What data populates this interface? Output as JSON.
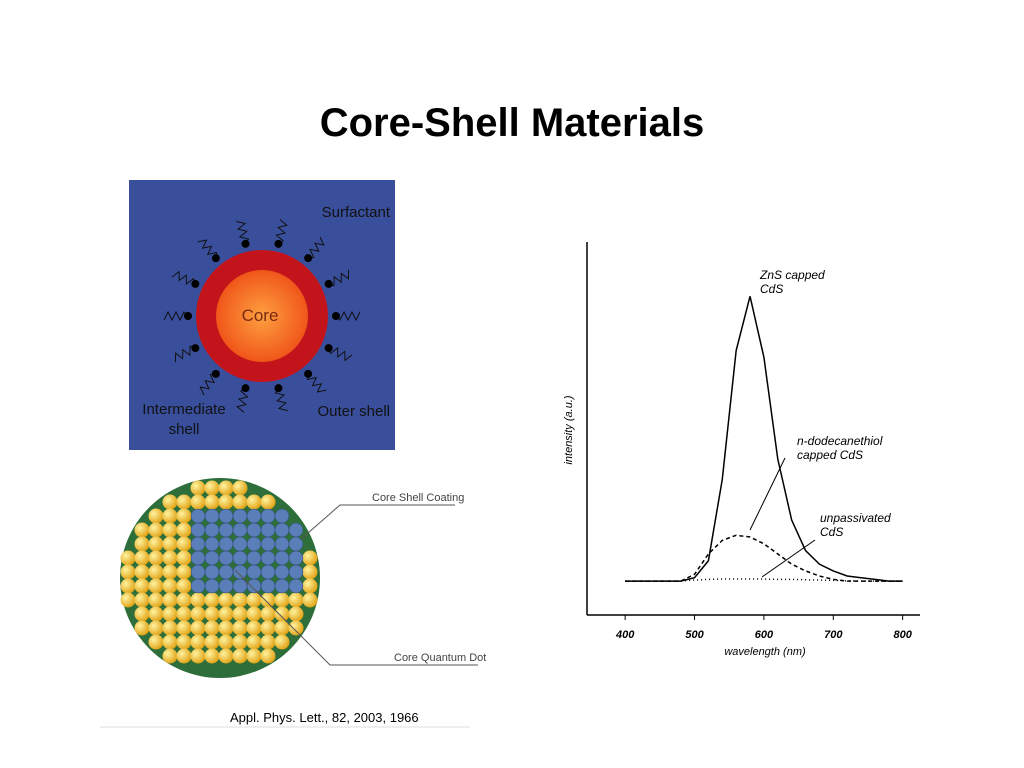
{
  "title": "Core-Shell Materials",
  "diagram": {
    "surfactant": "Surfactant",
    "core": "Core",
    "intermediate": "Intermediate shell",
    "outer": "Outer shell"
  },
  "illustration": {
    "coating": "Core Shell Coating",
    "dot": "Core Quantum Dot"
  },
  "citation": "Appl. Phys. Lett., 82, 2003, 1966",
  "chart_data": {
    "type": "line",
    "x_label": "wavelength (nm)",
    "y_label": "intensity (a.u.)",
    "x": [
      400,
      420,
      440,
      460,
      480,
      500,
      520,
      540,
      560,
      580,
      600,
      620,
      640,
      660,
      680,
      700,
      720,
      740,
      760,
      780,
      800
    ],
    "xlim": [
      345,
      825
    ],
    "xticks": [
      400,
      500,
      600,
      700,
      800
    ],
    "ylim": [
      -0.1,
      1.0
    ],
    "series": [
      {
        "name": "ZnS capped CdS",
        "color": "#000000",
        "dash": "none",
        "values": [
          0,
          0,
          0,
          0,
          0,
          0.01,
          0.06,
          0.3,
          0.68,
          0.84,
          0.66,
          0.36,
          0.18,
          0.09,
          0.05,
          0.03,
          0.015,
          0.01,
          0.005,
          0,
          0
        ]
      },
      {
        "name": "n-dodecanethiol capped CdS",
        "color": "#000000",
        "dash": "4 3",
        "values": [
          0,
          0,
          0,
          0,
          0,
          0.02,
          0.08,
          0.12,
          0.135,
          0.13,
          0.11,
          0.08,
          0.05,
          0.03,
          0.015,
          0.005,
          0,
          0,
          0,
          0,
          0
        ]
      },
      {
        "name": "unpassivated CdS",
        "color": "#000000",
        "dash": "1 3",
        "values": [
          0,
          0,
          0,
          0,
          0,
          0.003,
          0.005,
          0.006,
          0.006,
          0.006,
          0.006,
          0.005,
          0.005,
          0.004,
          0.003,
          0.002,
          0.001,
          0,
          0,
          0,
          0
        ]
      }
    ]
  }
}
